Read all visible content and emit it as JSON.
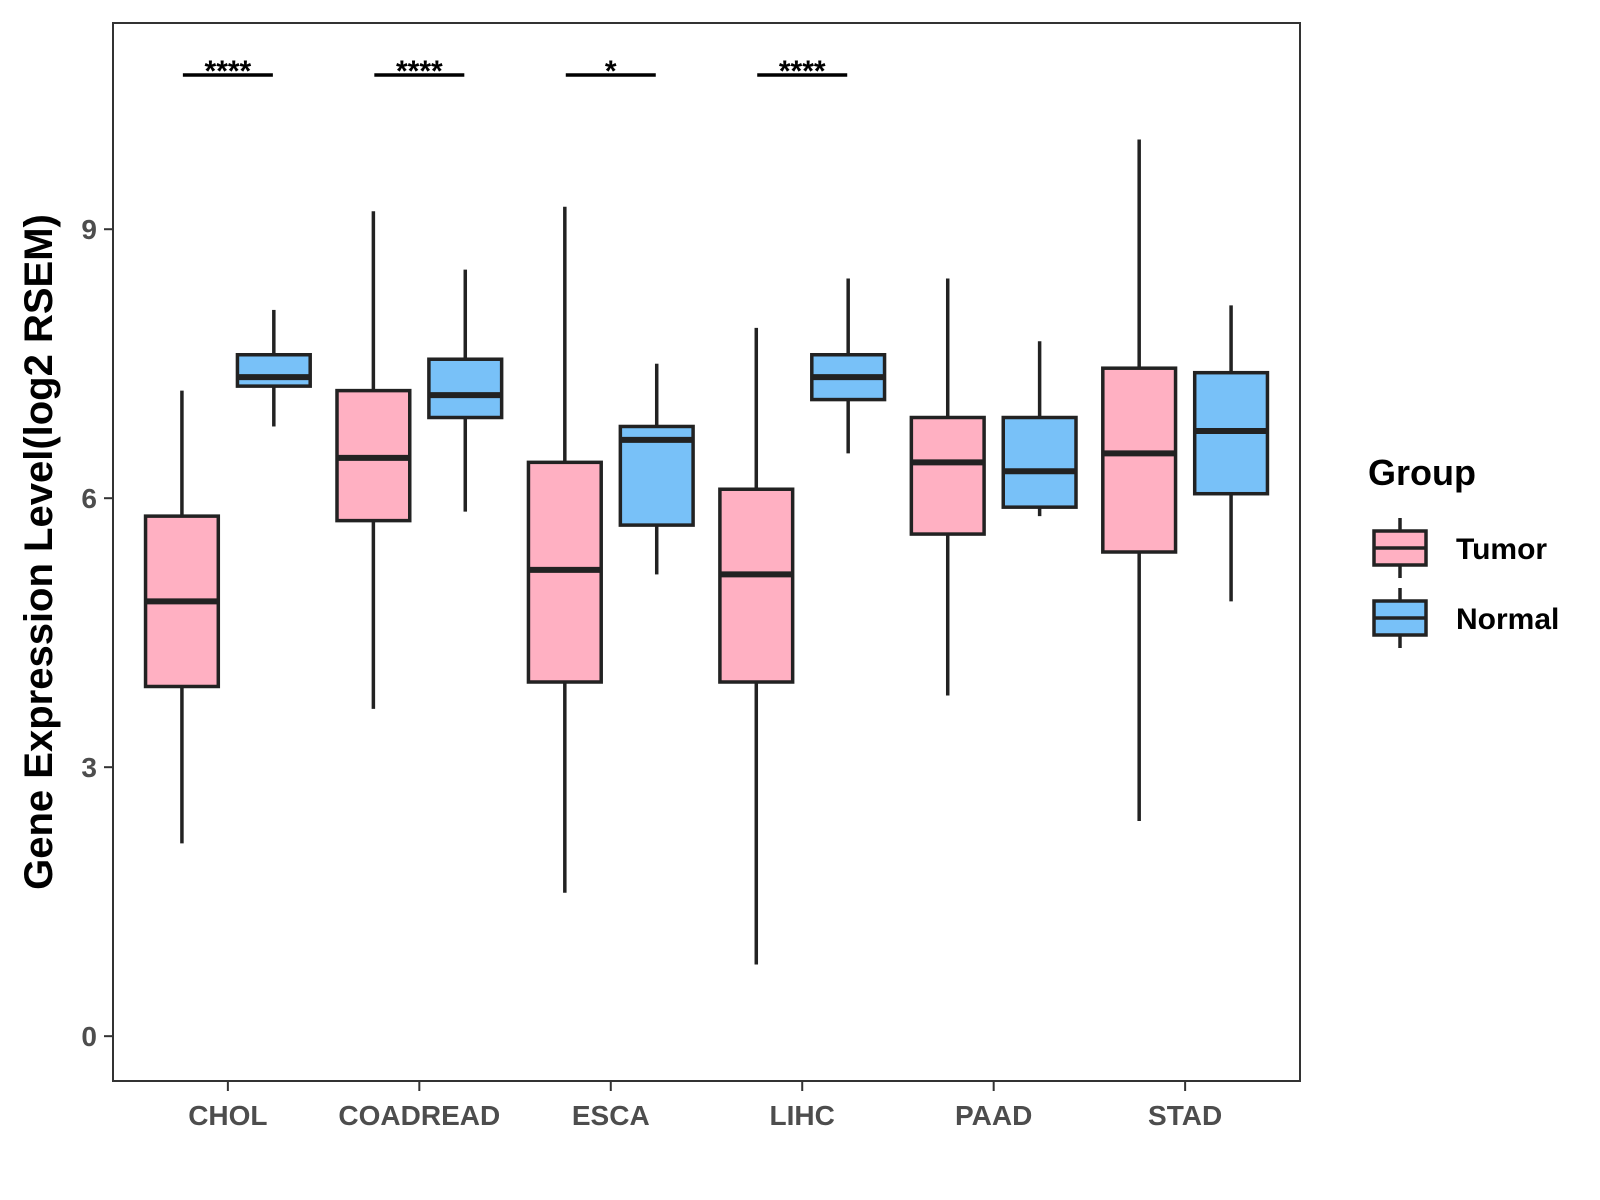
{
  "chart_data": {
    "type": "boxplot",
    "title": "",
    "xlabel": "",
    "ylabel": "Gene Expression Level(log2 RSEM)",
    "ylim": [
      -0.5,
      11.3
    ],
    "yticks": [
      0,
      3,
      6,
      9
    ],
    "categories": [
      "CHOL",
      "COADREAD",
      "ESCA",
      "LIHC",
      "PAAD",
      "STAD"
    ],
    "legend": {
      "title": "Group",
      "position": "right"
    },
    "series": [
      {
        "name": "Tumor",
        "color": "#FFB0C2",
        "boxes": [
          {
            "category": "CHOL",
            "min": 2.15,
            "q1": 3.9,
            "median": 4.85,
            "q3": 5.8,
            "max": 7.2
          },
          {
            "category": "COADREAD",
            "min": 3.65,
            "q1": 5.75,
            "median": 6.45,
            "q3": 7.2,
            "max": 9.2
          },
          {
            "category": "ESCA",
            "min": 1.6,
            "q1": 3.95,
            "median": 5.2,
            "q3": 6.4,
            "max": 9.25
          },
          {
            "category": "LIHC",
            "min": 0.8,
            "q1": 3.95,
            "median": 5.15,
            "q3": 6.1,
            "max": 7.9
          },
          {
            "category": "PAAD",
            "min": 3.8,
            "q1": 5.6,
            "median": 6.4,
            "q3": 6.9,
            "max": 8.45
          },
          {
            "category": "STAD",
            "min": 2.4,
            "q1": 5.4,
            "median": 6.5,
            "q3": 7.45,
            "max": 10.0
          }
        ]
      },
      {
        "name": "Normal",
        "color": "#78C1F8",
        "boxes": [
          {
            "category": "CHOL",
            "min": 6.8,
            "q1": 7.25,
            "median": 7.35,
            "q3": 7.6,
            "max": 8.1
          },
          {
            "category": "COADREAD",
            "min": 5.85,
            "q1": 6.9,
            "median": 7.15,
            "q3": 7.55,
            "max": 8.55
          },
          {
            "category": "ESCA",
            "min": 5.15,
            "q1": 5.7,
            "median": 6.65,
            "q3": 6.8,
            "max": 7.5
          },
          {
            "category": "LIHC",
            "min": 6.5,
            "q1": 7.1,
            "median": 7.35,
            "q3": 7.6,
            "max": 8.45
          },
          {
            "category": "PAAD",
            "min": 5.8,
            "q1": 5.9,
            "median": 6.3,
            "q3": 6.9,
            "max": 7.75
          },
          {
            "category": "STAD",
            "min": 4.85,
            "q1": 6.05,
            "median": 6.75,
            "q3": 7.4,
            "max": 8.15
          }
        ]
      }
    ],
    "annotations": [
      {
        "category": "CHOL",
        "label": "****"
      },
      {
        "category": "COADREAD",
        "label": "****"
      },
      {
        "category": "ESCA",
        "label": "*"
      },
      {
        "category": "LIHC",
        "label": "****"
      }
    ]
  }
}
